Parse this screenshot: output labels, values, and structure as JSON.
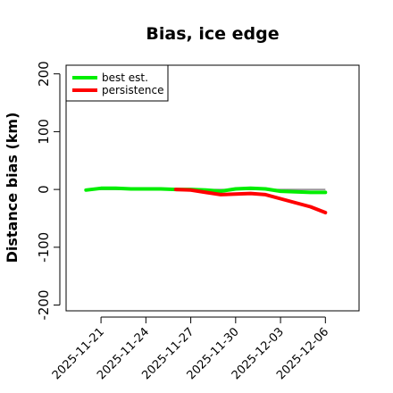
{
  "chart_data": {
    "type": "line",
    "title": "Bias, ice edge",
    "xlabel": "",
    "ylabel": "Distance bias (km)",
    "x_ticks": [
      "2025-11-21",
      "2025-11-24",
      "2025-11-27",
      "2025-11-30",
      "2025-12-03",
      "2025-12-06"
    ],
    "y_ticks": [
      "-200",
      "-100",
      "0",
      "100",
      "200"
    ],
    "ylim": [
      -210,
      215
    ],
    "xlim": [
      "2025-11-18T16:00",
      "2025-12-08T06:00"
    ],
    "grid": false,
    "legend_position": "top-left",
    "series": [
      {
        "name": "best est.",
        "color": "#00ee00",
        "points": [
          {
            "x": "2025-11-20",
            "y": -1
          },
          {
            "x": "2025-11-21",
            "y": 2
          },
          {
            "x": "2025-11-22",
            "y": 2
          },
          {
            "x": "2025-11-23",
            "y": 1
          },
          {
            "x": "2025-11-24",
            "y": 1
          },
          {
            "x": "2025-11-25",
            "y": 1
          },
          {
            "x": "2025-11-26",
            "y": 0
          },
          {
            "x": "2025-11-27",
            "y": 0
          },
          {
            "x": "2025-11-28",
            "y": -1
          },
          {
            "x": "2025-11-29",
            "y": -3
          },
          {
            "x": "2025-11-30",
            "y": 1
          },
          {
            "x": "2025-12-01",
            "y": 2
          },
          {
            "x": "2025-12-02",
            "y": 1
          },
          {
            "x": "2025-12-03",
            "y": -3
          },
          {
            "x": "2025-12-04",
            "y": -4
          },
          {
            "x": "2025-12-05",
            "y": -5
          },
          {
            "x": "2025-12-06",
            "y": -5
          }
        ]
      },
      {
        "name": "persistence",
        "color": "#ff0000",
        "points": [
          {
            "x": "2025-11-26",
            "y": 0
          },
          {
            "x": "2025-11-27",
            "y": -1
          },
          {
            "x": "2025-11-28",
            "y": -5
          },
          {
            "x": "2025-11-29",
            "y": -9
          },
          {
            "x": "2025-11-30",
            "y": -8
          },
          {
            "x": "2025-12-01",
            "y": -7
          },
          {
            "x": "2025-12-02",
            "y": -9
          },
          {
            "x": "2025-12-03",
            "y": -16
          },
          {
            "x": "2025-12-04",
            "y": -23
          },
          {
            "x": "2025-12-05",
            "y": -30
          },
          {
            "x": "2025-12-06",
            "y": -40
          }
        ]
      }
    ],
    "colors": {
      "axis": "#000000",
      "zero_line": "#888888",
      "background": "#ffffff"
    }
  }
}
